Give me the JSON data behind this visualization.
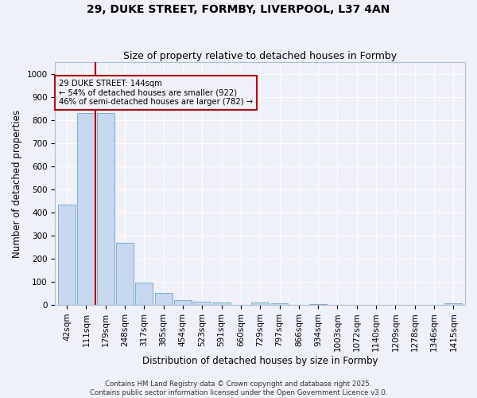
{
  "title1": "29, DUKE STREET, FORMBY, LIVERPOOL, L37 4AN",
  "title2": "Size of property relative to detached houses in Formby",
  "xlabel": "Distribution of detached houses by size in Formby",
  "ylabel": "Number of detached properties",
  "categories": [
    "42sqm",
    "111sqm",
    "179sqm",
    "248sqm",
    "317sqm",
    "385sqm",
    "454sqm",
    "523sqm",
    "591sqm",
    "660sqm",
    "729sqm",
    "797sqm",
    "866sqm",
    "934sqm",
    "1003sqm",
    "1072sqm",
    "1140sqm",
    "1209sqm",
    "1278sqm",
    "1346sqm",
    "1415sqm"
  ],
  "values": [
    435,
    830,
    830,
    270,
    95,
    50,
    22,
    15,
    10,
    0,
    10,
    8,
    0,
    5,
    0,
    0,
    0,
    0,
    0,
    0,
    8
  ],
  "bar_color": "#c5d8ef",
  "bar_edge_color": "#7aaed6",
  "vline_x_index": 1.5,
  "vline_color": "#cc0000",
  "annotation_text": "29 DUKE STREET: 144sqm\n← 54% of detached houses are smaller (922)\n46% of semi-detached houses are larger (782) →",
  "annotation_box_color": "#cc0000",
  "ylim": [
    0,
    1050
  ],
  "yticks": [
    0,
    100,
    200,
    300,
    400,
    500,
    600,
    700,
    800,
    900,
    1000
  ],
  "background_color": "#eef2f8",
  "grid_color": "#ffffff",
  "title_fontsize": 10,
  "subtitle_fontsize": 9,
  "axis_label_fontsize": 8.5,
  "tick_fontsize": 7.5,
  "footer_text": "Contains HM Land Registry data © Crown copyright and database right 2025.\nContains public sector information licensed under the Open Government Licence v3.0."
}
